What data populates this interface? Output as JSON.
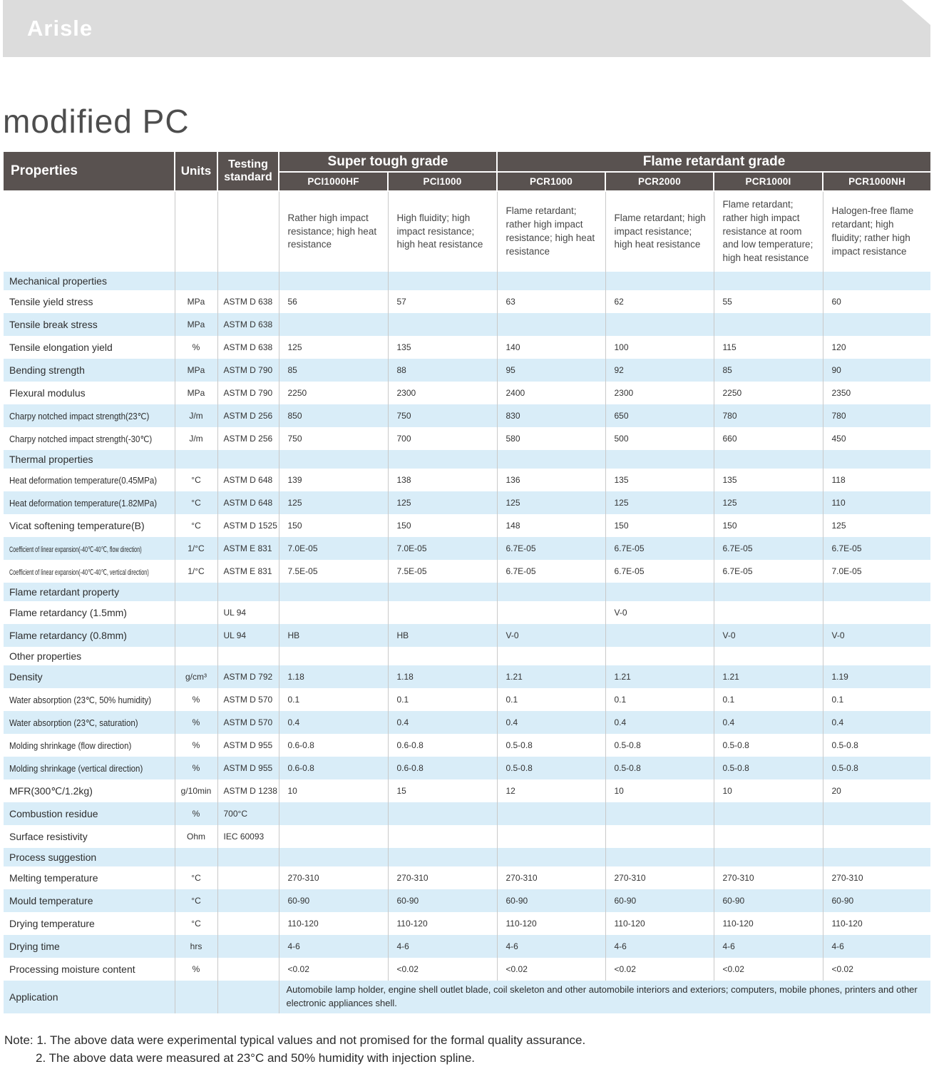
{
  "brand": {
    "logo_text": "Arisle"
  },
  "page": {
    "title": "modified PC"
  },
  "colors": {
    "header_bg": "#595250",
    "row_blue": "#d9edf8",
    "brand_bar": "#dcdcdc",
    "title_text": "#4d4d4d"
  },
  "table": {
    "header": {
      "properties": "Properties",
      "units": "Units",
      "testing_standard": "Testing standard",
      "groups": [
        {
          "label": "Super tough grade",
          "grades": [
            "PCI1000HF",
            "PCI1000"
          ]
        },
        {
          "label": "Flame retardant grade",
          "grades": [
            "PCR1000",
            "PCR2000",
            "PCR1000I",
            "PCR1000NH"
          ]
        }
      ],
      "grades": [
        "PCI1000HF",
        "PCI1000",
        "PCR1000",
        "PCR2000",
        "PCR1000I",
        "PCR1000NH"
      ],
      "descriptions": [
        "Rather high impact resistance; high heat resistance",
        "High fluidity; high impact resistance; high heat resistance",
        "Flame retardant; rather high impact resistance; high heat resistance",
        "Flame retardant; high impact resistance; high heat resistance",
        "Flame retardant; rather high impact resistance at room and low temperature; high heat resistance",
        "Halogen-free flame retardant; high fluidity; rather high impact resistance"
      ]
    },
    "rows": [
      {
        "type": "section",
        "label": "Mechanical properties"
      },
      {
        "type": "data",
        "label": "Tensile yield stress",
        "unit": "MPa",
        "standard": "ASTM D 638",
        "values": [
          "56",
          "57",
          "63",
          "62",
          "55",
          "60"
        ]
      },
      {
        "type": "data",
        "label": "Tensile break stress",
        "unit": "MPa",
        "standard": "ASTM D 638",
        "values": [
          "",
          "",
          "",
          "",
          "",
          ""
        ]
      },
      {
        "type": "data",
        "label": "Tensile elongation yield",
        "unit": "%",
        "standard": "ASTM D 638",
        "values": [
          "125",
          "135",
          "140",
          "100",
          "115",
          "120"
        ]
      },
      {
        "type": "data",
        "label": "Bending strength",
        "unit": "MPa",
        "standard": "ASTM D 790",
        "values": [
          "85",
          "88",
          "95",
          "92",
          "85",
          "90"
        ]
      },
      {
        "type": "data",
        "label": "Flexural modulus",
        "unit": "MPa",
        "standard": "ASTM D 790",
        "values": [
          "2250",
          "2300",
          "2400",
          "2300",
          "2250",
          "2350"
        ]
      },
      {
        "type": "data",
        "label": "Charpy notched impact strength(23℃)",
        "unit": "J/m",
        "standard": "ASTM D 256",
        "values": [
          "850",
          "750",
          "830",
          "650",
          "780",
          "780"
        ]
      },
      {
        "type": "data",
        "label": "Charpy notched impact strength(-30℃)",
        "unit": "J/m",
        "standard": "ASTM D 256",
        "values": [
          "750",
          "700",
          "580",
          "500",
          "660",
          "450"
        ]
      },
      {
        "type": "section",
        "label": "Thermal properties"
      },
      {
        "type": "data",
        "label": "Heat deformation temperature(0.45MPa)",
        "unit": "°C",
        "standard": "ASTM D 648",
        "values": [
          "139",
          "138",
          "136",
          "135",
          "135",
          "118"
        ]
      },
      {
        "type": "data",
        "label": "Heat deformation temperature(1.82MPa)",
        "unit": "°C",
        "standard": "ASTM D 648",
        "values": [
          "125",
          "125",
          "125",
          "125",
          "125",
          "110"
        ]
      },
      {
        "type": "data",
        "label": "Vicat softening temperature(B)",
        "unit": "°C",
        "standard": "ASTM D 1525",
        "values": [
          "150",
          "150",
          "148",
          "150",
          "150",
          "125"
        ]
      },
      {
        "type": "data",
        "label": "Coefficient of linear expansion(-40℃-40℃, flow direction)",
        "unit": "1/°C",
        "standard": "ASTM E 831",
        "values": [
          "7.0E-05",
          "7.0E-05",
          "6.7E-05",
          "6.7E-05",
          "6.7E-05",
          "6.7E-05"
        ]
      },
      {
        "type": "data",
        "label": "Coefficient of linear expansion(-40℃-40℃, vertical direction)",
        "unit": "1/°C",
        "standard": "ASTM E 831",
        "values": [
          "7.5E-05",
          "7.5E-05",
          "6.7E-05",
          "6.7E-05",
          "6.7E-05",
          "7.0E-05"
        ]
      },
      {
        "type": "section",
        "label": "Flame retardant property"
      },
      {
        "type": "data",
        "label": "Flame retardancy (1.5mm)",
        "unit": "",
        "standard": "UL 94",
        "values": [
          "",
          "",
          "",
          "V-0",
          "",
          ""
        ]
      },
      {
        "type": "data",
        "label": "Flame retardancy (0.8mm)",
        "unit": "",
        "standard": "UL 94",
        "values": [
          "HB",
          "HB",
          "V-0",
          "",
          "V-0",
          "V-0"
        ]
      },
      {
        "type": "section",
        "label": "Other properties"
      },
      {
        "type": "data",
        "label": "Density",
        "unit": "g/cm³",
        "standard": "ASTM D 792",
        "values": [
          "1.18",
          "1.18",
          "1.21",
          "1.21",
          "1.21",
          "1.19"
        ]
      },
      {
        "type": "data",
        "label": "Water absorption (23℃, 50% humidity)",
        "unit": "%",
        "standard": "ASTM D 570",
        "values": [
          "0.1",
          "0.1",
          "0.1",
          "0.1",
          "0.1",
          "0.1"
        ]
      },
      {
        "type": "data",
        "label": "Water absorption (23℃, saturation)",
        "unit": "%",
        "standard": "ASTM D 570",
        "values": [
          "0.4",
          "0.4",
          "0.4",
          "0.4",
          "0.4",
          "0.4"
        ]
      },
      {
        "type": "data",
        "label": "Molding shrinkage (flow direction)",
        "unit": "%",
        "standard": "ASTM D 955",
        "values": [
          "0.6-0.8",
          "0.6-0.8",
          "0.5-0.8",
          "0.5-0.8",
          "0.5-0.8",
          "0.5-0.8"
        ]
      },
      {
        "type": "data",
        "label": "Molding shrinkage (vertical direction)",
        "unit": "%",
        "standard": "ASTM D 955",
        "values": [
          "0.6-0.8",
          "0.6-0.8",
          "0.5-0.8",
          "0.5-0.8",
          "0.5-0.8",
          "0.5-0.8"
        ]
      },
      {
        "type": "data",
        "label": "MFR(300℃/1.2kg)",
        "unit": "g/10min",
        "standard": "ASTM D 1238",
        "values": [
          "10",
          "15",
          "12",
          "10",
          "10",
          "20"
        ]
      },
      {
        "type": "data",
        "label": "Combustion residue",
        "unit": "%",
        "standard": "700°C",
        "values": [
          "",
          "",
          "",
          "",
          "",
          ""
        ]
      },
      {
        "type": "data",
        "label": "Surface resistivity",
        "unit": "Ohm",
        "standard": "IEC 60093",
        "values": [
          "",
          "",
          "",
          "",
          "",
          ""
        ]
      },
      {
        "type": "section",
        "label": "Process suggestion"
      },
      {
        "type": "data",
        "label": "Melting temperature",
        "unit": "°C",
        "standard": "",
        "values": [
          "270-310",
          "270-310",
          "270-310",
          "270-310",
          "270-310",
          "270-310"
        ]
      },
      {
        "type": "data",
        "label": "Mould temperature",
        "unit": "°C",
        "standard": "",
        "values": [
          "60-90",
          "60-90",
          "60-90",
          "60-90",
          "60-90",
          "60-90"
        ]
      },
      {
        "type": "data",
        "label": "Drying temperature",
        "unit": "°C",
        "standard": "",
        "values": [
          "110-120",
          "110-120",
          "110-120",
          "110-120",
          "110-120",
          "110-120"
        ]
      },
      {
        "type": "data",
        "label": "Drying time",
        "unit": "hrs",
        "standard": "",
        "values": [
          "4-6",
          "4-6",
          "4-6",
          "4-6",
          "4-6",
          "4-6"
        ]
      },
      {
        "type": "data",
        "label": "Processing moisture content",
        "unit": "%",
        "standard": "",
        "values": [
          "<0.02",
          "<0.02",
          "<0.02",
          "<0.02",
          "<0.02",
          "<0.02"
        ]
      },
      {
        "type": "application",
        "label": "Application",
        "unit": "",
        "standard": "",
        "text": "Automobile lamp holder, engine shell outlet blade, coil skeleton and other automobile interiors and exteriors; computers, mobile phones, printers and other electronic appliances shell."
      }
    ]
  },
  "notes": {
    "line1": "Note: 1. The above data were experimental typical values and not promised for the formal quality assurance.",
    "line2": "2. The above data were measured at 23°C and 50% humidity with injection spline."
  }
}
